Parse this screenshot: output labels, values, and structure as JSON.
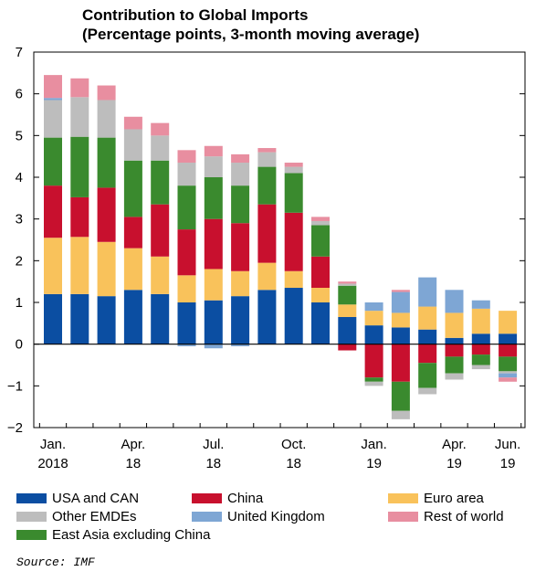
{
  "chart_data": {
    "type": "bar",
    "stacked": true,
    "title": "Contribution to Global Imports",
    "subtitle": "(Percentage points, 3-month moving average)",
    "ylim": [
      -2,
      7
    ],
    "yticks": [
      "7",
      "6",
      "5",
      "4",
      "3",
      "2",
      "1",
      "0",
      "−1",
      "−2"
    ],
    "x_tick_labels": [
      {
        "line1": "Jan.",
        "line2": "2018",
        "index": 0
      },
      {
        "line1": "Apr.",
        "line2": "18",
        "index": 3
      },
      {
        "line1": "Jul.",
        "line2": "18",
        "index": 6
      },
      {
        "line1": "Oct.",
        "line2": "18",
        "index": 9
      },
      {
        "line1": "Jan.",
        "line2": "19",
        "index": 12
      },
      {
        "line1": "Apr.",
        "line2": "19",
        "index": 15
      },
      {
        "line1": "Jun.",
        "line2": "19",
        "index": 17
      }
    ],
    "categories": [
      "Jan 2018",
      "Feb 2018",
      "Mar 2018",
      "Apr 2018",
      "May 2018",
      "Jun 2018",
      "Jul 2018",
      "Aug 2018",
      "Sep 2018",
      "Oct 2018",
      "Nov 2018",
      "Dec 2018",
      "Jan 2019",
      "Feb 2019",
      "Mar 2019",
      "Apr 2019",
      "May 2019",
      "Jun 2019"
    ],
    "series": [
      {
        "name": "USA and CAN",
        "color": "#0b4ea2",
        "values": [
          1.2,
          1.2,
          1.15,
          1.3,
          1.2,
          1.0,
          1.05,
          1.15,
          1.3,
          1.35,
          1.0,
          0.65,
          0.45,
          0.4,
          0.35,
          0.15,
          0.25,
          0.25
        ]
      },
      {
        "name": "Euro area",
        "color": "#f9c25b",
        "values": [
          1.35,
          1.37,
          1.3,
          1.0,
          0.9,
          0.65,
          0.75,
          0.6,
          0.65,
          0.4,
          0.35,
          0.3,
          0.35,
          0.35,
          0.55,
          0.6,
          0.6,
          0.55
        ]
      },
      {
        "name": "China",
        "color": "#c8102e",
        "values": [
          1.25,
          0.95,
          1.3,
          0.75,
          1.25,
          1.1,
          1.2,
          1.15,
          1.4,
          1.4,
          0.75,
          -0.15,
          -0.8,
          -0.9,
          -0.45,
          -0.3,
          -0.25,
          -0.3
        ]
      },
      {
        "name": "East Asia excluding China",
        "color": "#3a8a2e",
        "values": [
          1.15,
          1.45,
          1.2,
          1.35,
          1.05,
          1.05,
          1.0,
          0.9,
          0.9,
          0.95,
          0.75,
          0.45,
          -0.1,
          -0.7,
          -0.6,
          -0.4,
          -0.25,
          -0.35
        ]
      },
      {
        "name": "Other EMDEs",
        "color": "#bdbdbd",
        "values": [
          0.9,
          0.95,
          0.9,
          0.75,
          0.6,
          0.55,
          0.5,
          0.55,
          0.35,
          0.15,
          0.1,
          0.05,
          -0.1,
          -0.2,
          -0.15,
          -0.15,
          -0.1,
          -0.05
        ]
      },
      {
        "name": "United Kingdom",
        "color": "#7ea6d4",
        "values": [
          0.05,
          0.0,
          0.0,
          0.0,
          0.0,
          -0.05,
          -0.1,
          -0.05,
          0.0,
          0.0,
          0.0,
          0.0,
          0.2,
          0.5,
          0.7,
          0.55,
          0.2,
          -0.1
        ]
      },
      {
        "name": "Rest of world",
        "color": "#e88ea0",
        "values": [
          0.55,
          0.45,
          0.35,
          0.3,
          0.3,
          0.3,
          0.25,
          0.2,
          0.1,
          0.1,
          0.1,
          0.05,
          0.0,
          0.05,
          0.0,
          0.0,
          0.0,
          -0.1
        ]
      }
    ],
    "legend_placement": "bottom"
  },
  "legend": [
    {
      "label": "USA and CAN",
      "color": "#0b4ea2"
    },
    {
      "label": "China",
      "color": "#c8102e"
    },
    {
      "label": "Euro area",
      "color": "#f9c25b"
    },
    {
      "label": "Other EMDEs",
      "color": "#bdbdbd"
    },
    {
      "label": "United Kingdom",
      "color": "#7ea6d4"
    },
    {
      "label": "Rest of world",
      "color": "#e88ea0"
    },
    {
      "label": "East Asia excluding China",
      "color": "#3a8a2e"
    }
  ],
  "source": "Source: IMF"
}
